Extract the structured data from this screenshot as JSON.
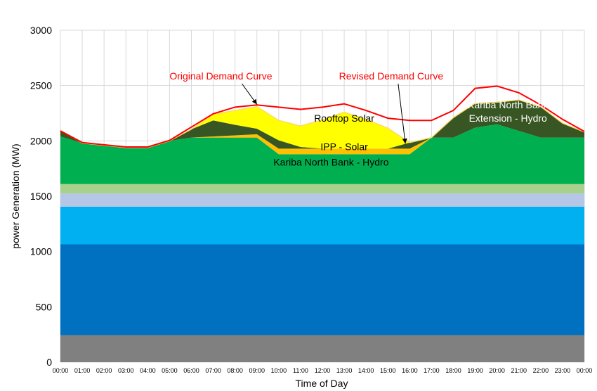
{
  "chart_data": {
    "type": "area",
    "stacked": true,
    "xlabel": "Time of Day",
    "ylabel": "power Generation (MW)",
    "ylim": [
      0,
      3000
    ],
    "yticks": [
      0,
      500,
      1000,
      1500,
      2000,
      2500,
      3000
    ],
    "grid": true,
    "legend": "none",
    "categories": [
      "00:00",
      "01:00",
      "02:00",
      "03:00",
      "04:00",
      "05:00",
      "06:00",
      "07:00",
      "08:00",
      "09:00",
      "10:00",
      "11:00",
      "12:00",
      "13:00",
      "14:00",
      "15:00",
      "16:00",
      "17:00",
      "18:00",
      "19:00",
      "20:00",
      "21:00",
      "22:00",
      "23:00",
      "00:00"
    ],
    "series": [
      {
        "id": "base-gray",
        "color": "#808080",
        "values": [
          245,
          245,
          245,
          245,
          245,
          245,
          245,
          245,
          245,
          245,
          245,
          245,
          245,
          245,
          245,
          245,
          245,
          245,
          245,
          245,
          245,
          245,
          245,
          245,
          245
        ]
      },
      {
        "id": "base-darkblue",
        "color": "#0070C0",
        "values": [
          820,
          820,
          820,
          820,
          820,
          820,
          820,
          820,
          820,
          820,
          820,
          820,
          820,
          820,
          820,
          820,
          820,
          820,
          820,
          820,
          820,
          820,
          820,
          820,
          820
        ]
      },
      {
        "id": "base-lightblue",
        "color": "#00B0F0",
        "values": [
          340,
          340,
          340,
          340,
          340,
          340,
          340,
          340,
          340,
          340,
          340,
          340,
          340,
          340,
          340,
          340,
          340,
          340,
          340,
          340,
          340,
          340,
          340,
          340,
          340
        ]
      },
      {
        "id": "base-paleblue",
        "color": "#B4C7E7",
        "values": [
          120,
          120,
          120,
          120,
          120,
          120,
          120,
          120,
          120,
          120,
          120,
          120,
          120,
          120,
          120,
          120,
          120,
          120,
          120,
          120,
          120,
          120,
          120,
          120,
          120
        ]
      },
      {
        "id": "base-palegreen",
        "color": "#A9D18E",
        "values": [
          85,
          85,
          85,
          85,
          85,
          85,
          85,
          85,
          85,
          85,
          85,
          85,
          85,
          85,
          85,
          85,
          85,
          85,
          85,
          85,
          85,
          85,
          85,
          85,
          85
        ]
      },
      {
        "id": "kariba-north-bank",
        "name": "Kariba North Bank - Hydro",
        "color": "#00B050",
        "values": [
          430,
          370,
          350,
          330,
          330,
          390,
          420,
          420,
          420,
          420,
          270,
          270,
          270,
          270,
          270,
          270,
          270,
          420,
          420,
          510,
          540,
          480,
          420,
          420,
          420
        ]
      },
      {
        "id": "ipp-solar",
        "name": "IPP - Solar",
        "color": "#FFC000",
        "values": [
          0,
          0,
          0,
          0,
          0,
          0,
          0,
          10,
          20,
          30,
          50,
          50,
          50,
          50,
          50,
          50,
          50,
          0,
          0,
          0,
          0,
          0,
          0,
          0,
          0
        ]
      },
      {
        "id": "kariba-extension",
        "name": "Kariba North Bank Extension - Hydro",
        "color": "#375623",
        "values": [
          55,
          0,
          0,
          0,
          0,
          0,
          75,
          145,
          95,
          50,
          75,
          15,
          0,
          0,
          0,
          0,
          55,
          0,
          180,
          220,
          200,
          280,
          280,
          130,
          50
        ]
      },
      {
        "id": "rooftop-solar",
        "name": "Rooftop Solar",
        "color": "#FFFF00",
        "values": [
          0,
          0,
          0,
          0,
          0,
          0,
          0,
          55,
          130,
          200,
          180,
          190,
          260,
          330,
          265,
          185,
          0,
          0,
          0,
          0,
          0,
          0,
          0,
          0,
          0
        ]
      }
    ],
    "original_demand": [
      2090,
      1985,
      1965,
      1945,
      1945,
      2005,
      2125,
      2245,
      2305,
      2325,
      2305,
      2285,
      2305,
      2335,
      2275,
      2205,
      2185,
      2185,
      2275,
      2475,
      2495,
      2435,
      2325,
      2195,
      2085
    ],
    "annotations": [
      {
        "id": "label-original",
        "text": "Original Demand Curve",
        "color": "#FF0000",
        "at": [
          7.35,
          2555
        ],
        "arrow_to": [
          9.0,
          2330
        ]
      },
      {
        "id": "label-revised",
        "text": "Revised Demand Curve",
        "color": "#FF0000",
        "at": [
          15.15,
          2555
        ],
        "arrow_to": [
          15.8,
          1975
        ]
      },
      {
        "id": "label-rooftop",
        "text": "Rooftop Solar",
        "color": "#000000",
        "at": [
          13.0,
          2175
        ]
      },
      {
        "id": "label-ipp",
        "text": "IPP - Solar",
        "color": "#000000",
        "small": true,
        "at": [
          13.0,
          1915
        ]
      },
      {
        "id": "label-kariba",
        "text": "Kariba North Bank - Hydro",
        "color": "#000000",
        "at": [
          12.4,
          1775
        ]
      },
      {
        "id": "label-extension-1",
        "text": "Kariba North Bank",
        "color": "#FFFFFF",
        "at": [
          20.5,
          2295
        ]
      },
      {
        "id": "label-extension-2",
        "text": "Extension - Hydro",
        "color": "#FFFFFF",
        "at": [
          20.5,
          2175
        ]
      }
    ]
  }
}
